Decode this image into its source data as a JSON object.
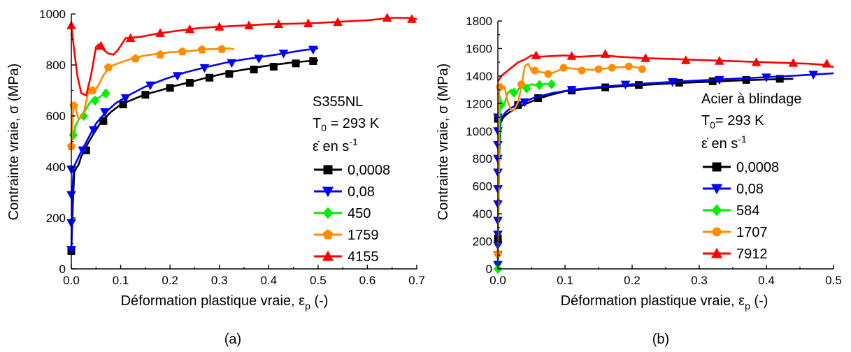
{
  "chart_data": [
    {
      "type": "line",
      "panel_label": "(a)",
      "xlabel": "Déformation plastique vraie, εp (-)",
      "ylabel": "Contrainte vraie, σ (MPa)",
      "xlim": [
        0,
        0.7
      ],
      "ylim": [
        0,
        1000
      ],
      "xticks": [
        "0.0",
        "0.1",
        "0.2",
        "0.3",
        "0.4",
        "0.5",
        "0.6",
        "0.7"
      ],
      "yticks": [
        "0",
        "200",
        "400",
        "600",
        "800",
        "1000"
      ],
      "legend_placement": "right-inside",
      "legend_lines": [
        "S355NL",
        "T0 = 293 K",
        "ε̇ en s-1"
      ],
      "series": [
        {
          "name": "0,0008",
          "color": "#000000",
          "marker": "square",
          "x": [
            0.0,
            0.003,
            0.006,
            0.01,
            0.015,
            0.02,
            0.03,
            0.045,
            0.06,
            0.08,
            0.1,
            0.125,
            0.15,
            0.18,
            0.21,
            0.24,
            0.27,
            0.3,
            0.33,
            0.36,
            0.39,
            0.42,
            0.45,
            0.48,
            0.5
          ],
          "y": [
            70,
            250,
            380,
            395,
            410,
            440,
            480,
            530,
            575,
            615,
            645,
            665,
            685,
            700,
            718,
            732,
            748,
            762,
            775,
            785,
            795,
            803,
            810,
            815,
            818
          ],
          "marker_x": [
            0.0,
            0.03,
            0.065,
            0.105,
            0.15,
            0.2,
            0.24,
            0.28,
            0.32,
            0.37,
            0.41,
            0.455,
            0.49
          ],
          "marker_y": [
            70,
            465,
            580,
            645,
            683,
            710,
            730,
            750,
            765,
            782,
            793,
            806,
            815
          ]
        },
        {
          "name": "0,08",
          "color": "#0000ff",
          "marker": "triangle-down",
          "x": [
            0.0,
            0.002,
            0.005,
            0.01,
            0.02,
            0.035,
            0.05,
            0.07,
            0.09,
            0.12,
            0.15,
            0.19,
            0.23,
            0.27,
            0.31,
            0.35,
            0.39,
            0.43,
            0.47,
            0.5
          ],
          "y": [
            60,
            300,
            400,
            420,
            460,
            515,
            570,
            615,
            650,
            685,
            715,
            745,
            770,
            790,
            808,
            822,
            833,
            845,
            858,
            865
          ],
          "marker_x": [
            0.0,
            0.0,
            0.0,
            0.0,
            0.023,
            0.045,
            0.068,
            0.11,
            0.16,
            0.215,
            0.27,
            0.325,
            0.38,
            0.43,
            0.49
          ],
          "marker_y": [
            75,
            180,
            290,
            390,
            465,
            545,
            615,
            670,
            720,
            757,
            788,
            808,
            825,
            845,
            860
          ]
        },
        {
          "name": "450",
          "color": "#00ee00",
          "marker": "diamond",
          "x": [
            0.0,
            0.004,
            0.008,
            0.015,
            0.025,
            0.035,
            0.045,
            0.055,
            0.065,
            0.075
          ],
          "y": [
            530,
            510,
            560,
            585,
            610,
            645,
            670,
            670,
            685,
            690
          ],
          "marker_x": [
            0.004,
            0.025,
            0.048,
            0.07
          ],
          "marker_y": [
            525,
            600,
            660,
            688
          ]
        },
        {
          "name": "1759",
          "color": "#ff8c00",
          "marker": "pentagon",
          "x": [
            0.0,
            0.004,
            0.008,
            0.015,
            0.025,
            0.035,
            0.045,
            0.055,
            0.065,
            0.08,
            0.1,
            0.13,
            0.16,
            0.2,
            0.24,
            0.28,
            0.32,
            0.33
          ],
          "y": [
            480,
            630,
            635,
            585,
            610,
            700,
            695,
            720,
            760,
            795,
            810,
            830,
            840,
            850,
            855,
            862,
            865,
            862
          ],
          "marker_x": [
            0.0,
            0.005,
            0.043,
            0.075,
            0.13,
            0.18,
            0.225,
            0.265,
            0.305
          ],
          "marker_y": [
            480,
            640,
            700,
            790,
            825,
            840,
            852,
            860,
            862
          ]
        },
        {
          "name": "4155",
          "color": "#ff0000",
          "marker": "triangle-up",
          "x": [
            0.0,
            0.005,
            0.012,
            0.02,
            0.03,
            0.04,
            0.05,
            0.055,
            0.065,
            0.075,
            0.085,
            0.095,
            0.11,
            0.14,
            0.18,
            0.22,
            0.26,
            0.3,
            0.35,
            0.4,
            0.45,
            0.5,
            0.55,
            0.6,
            0.65,
            0.68,
            0.7
          ],
          "y": [
            960,
            870,
            760,
            690,
            680,
            760,
            870,
            880,
            860,
            845,
            840,
            860,
            905,
            910,
            925,
            935,
            945,
            950,
            955,
            960,
            962,
            965,
            970,
            975,
            985,
            985,
            980
          ],
          "marker_x": [
            0.0,
            0.06,
            0.12,
            0.18,
            0.24,
            0.3,
            0.36,
            0.42,
            0.48,
            0.54,
            0.64,
            0.69
          ],
          "marker_y": [
            955,
            875,
            905,
            925,
            940,
            950,
            955,
            960,
            963,
            968,
            985,
            980
          ]
        }
      ]
    },
    {
      "type": "line",
      "panel_label": "(b)",
      "xlabel": "Déformation plastique vraie, εp (-)",
      "ylabel": "Contrainte vraie, σ (MPa)",
      "xlim": [
        0,
        0.5
      ],
      "ylim": [
        0,
        1800
      ],
      "xticks": [
        "0.0",
        "0.1",
        "0.2",
        "0.3",
        "0.4",
        "0.5"
      ],
      "yticks": [
        "0",
        "200",
        "400",
        "600",
        "800",
        "1000",
        "1200",
        "1400",
        "1600",
        "1800"
      ],
      "legend_placement": "right-inside",
      "legend_lines": [
        "Acier à blindage",
        "T0= 293 K",
        "ε̇ en s-1"
      ],
      "series": [
        {
          "name": "0,0008",
          "color": "#000000",
          "marker": "square",
          "x": [
            0.0,
            0.002,
            0.004,
            0.008,
            0.015,
            0.025,
            0.04,
            0.06,
            0.08,
            0.1,
            0.13,
            0.16,
            0.2,
            0.24,
            0.28,
            0.32,
            0.36,
            0.4,
            0.44
          ],
          "y": [
            200,
            800,
            1060,
            1100,
            1130,
            1160,
            1195,
            1235,
            1265,
            1290,
            1305,
            1318,
            1330,
            1342,
            1352,
            1360,
            1368,
            1375,
            1380
          ],
          "marker_x": [
            0.0,
            0.0,
            0.03,
            0.06,
            0.11,
            0.16,
            0.21,
            0.27,
            0.32,
            0.37,
            0.42
          ],
          "marker_y": [
            220,
            1090,
            1190,
            1240,
            1295,
            1318,
            1335,
            1352,
            1362,
            1372,
            1380
          ]
        },
        {
          "name": "0,08",
          "color": "#0000ff",
          "marker": "triangle-down",
          "x": [
            0.0,
            0.001,
            0.003,
            0.006,
            0.012,
            0.02,
            0.035,
            0.055,
            0.08,
            0.11,
            0.15,
            0.2,
            0.25,
            0.3,
            0.35,
            0.4,
            0.45,
            0.5
          ],
          "y": [
            0,
            700,
            1050,
            1100,
            1140,
            1170,
            1205,
            1245,
            1275,
            1300,
            1320,
            1340,
            1355,
            1368,
            1380,
            1392,
            1405,
            1420
          ],
          "marker_x": [
            0.0,
            0.0,
            0.0,
            0.0,
            0.0,
            0.0,
            0.0,
            0.0,
            0.0,
            0.0,
            0.0,
            0.0,
            0.04,
            0.11,
            0.19,
            0.26,
            0.33,
            0.4,
            0.47
          ],
          "marker_y": [
            30,
            100,
            170,
            250,
            350,
            470,
            580,
            700,
            800,
            900,
            1000,
            1100,
            1210,
            1300,
            1338,
            1357,
            1372,
            1390,
            1410
          ]
        },
        {
          "name": "584",
          "color": "#00ee00",
          "marker": "diamond",
          "x": [
            0.0,
            0.003,
            0.006,
            0.01,
            0.015,
            0.02,
            0.025,
            0.03,
            0.035,
            0.04,
            0.05,
            0.06,
            0.07,
            0.08
          ],
          "y": [
            0,
            1250,
            1170,
            1200,
            1280,
            1300,
            1260,
            1300,
            1330,
            1320,
            1340,
            1330,
            1345,
            1335
          ],
          "marker_x": [
            0.0,
            0.005,
            0.024,
            0.043,
            0.062,
            0.08
          ],
          "marker_y": [
            0,
            1190,
            1280,
            1310,
            1335,
            1340
          ]
        },
        {
          "name": "1707",
          "color": "#ff8c00",
          "marker": "circle",
          "x": [
            0.0,
            0.002,
            0.005,
            0.01,
            0.015,
            0.02,
            0.025,
            0.03,
            0.035,
            0.04,
            0.045,
            0.05,
            0.06,
            0.08,
            0.1,
            0.12,
            0.14,
            0.17,
            0.2,
            0.22
          ],
          "y": [
            100,
            1280,
            1330,
            1320,
            1210,
            1150,
            1160,
            1210,
            1320,
            1470,
            1490,
            1440,
            1430,
            1420,
            1460,
            1450,
            1445,
            1460,
            1470,
            1450
          ],
          "marker_x": [
            0.0,
            0.003,
            0.035,
            0.055,
            0.075,
            0.098,
            0.125,
            0.15,
            0.17,
            0.195,
            0.215
          ],
          "marker_y": [
            110,
            1320,
            1340,
            1440,
            1415,
            1460,
            1440,
            1450,
            1460,
            1470,
            1450
          ]
        },
        {
          "name": "7912",
          "color": "#ff0000",
          "marker": "triangle-up",
          "x": [
            0.0,
            0.005,
            0.01,
            0.02,
            0.03,
            0.04,
            0.05,
            0.06,
            0.08,
            0.1,
            0.12,
            0.14,
            0.16,
            0.18,
            0.2,
            0.22,
            0.25,
            0.28,
            0.31,
            0.34,
            0.37,
            0.4,
            0.43,
            0.46,
            0.49,
            0.5
          ],
          "y": [
            1360,
            1400,
            1420,
            1460,
            1500,
            1520,
            1550,
            1540,
            1545,
            1550,
            1540,
            1545,
            1550,
            1540,
            1535,
            1530,
            1525,
            1520,
            1515,
            1510,
            1505,
            1500,
            1495,
            1490,
            1480,
            1465
          ],
          "marker_x": [
            0.057,
            0.11,
            0.16,
            0.22,
            0.28,
            0.33,
            0.385,
            0.44,
            0.49
          ],
          "marker_y": [
            1550,
            1545,
            1560,
            1530,
            1515,
            1510,
            1500,
            1495,
            1490
          ]
        }
      ]
    }
  ]
}
